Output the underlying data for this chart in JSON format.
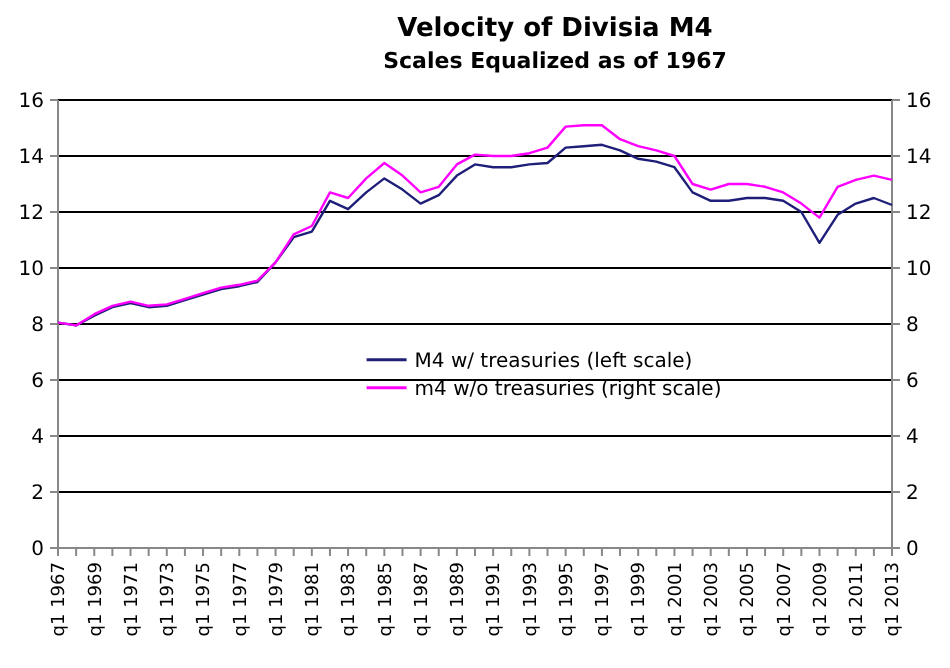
{
  "chart_data": {
    "type": "line",
    "title": "Velocity of Divisia M4",
    "subtitle": "Scales Equalized as of 1967",
    "categories": [
      "q1 1967",
      null,
      "q1 1969",
      null,
      "q1 1971",
      null,
      "q1 1973",
      null,
      "q1 1975",
      null,
      "q1 1977",
      null,
      "q1 1979",
      null,
      "q1 1981",
      null,
      "q1 1983",
      null,
      "q1 1985",
      null,
      "q1 1987",
      null,
      "q1 1989",
      null,
      "q1 1991",
      null,
      "q1 1993",
      null,
      "q1 1995",
      null,
      "q1 1997",
      null,
      "q1 1999",
      null,
      "q1 2001",
      null,
      "q1 2003",
      null,
      "q1 2005",
      null,
      "q1 2007",
      null,
      "q1 2009",
      null,
      "q1 2011",
      null,
      "q1 2013"
    ],
    "ylim": [
      0,
      16
    ],
    "yticks": [
      0,
      2,
      4,
      6,
      8,
      10,
      12,
      14,
      16
    ],
    "y2lim": [
      0,
      16
    ],
    "y2ticks": [
      0,
      2,
      4,
      6,
      8,
      10,
      12,
      14,
      16
    ],
    "grid": "y",
    "legend": "center",
    "marker": "none",
    "line_style": "solid",
    "series": [
      {
        "name": "M4 w/ treasuries (left scale)",
        "color": "#1f1f7a",
        "values": [
          8.05,
          7.95,
          8.3,
          8.6,
          8.75,
          8.6,
          8.65,
          8.85,
          9.05,
          9.25,
          9.35,
          9.5,
          10.2,
          11.1,
          11.3,
          12.4,
          12.1,
          12.7,
          13.2,
          12.8,
          12.3,
          12.6,
          13.3,
          13.7,
          13.6,
          13.6,
          13.7,
          13.75,
          14.3,
          14.35,
          14.4,
          14.2,
          13.9,
          13.8,
          13.6,
          12.7,
          12.4,
          12.4,
          12.5,
          12.5,
          12.4,
          12.0,
          10.9,
          11.9,
          12.3,
          12.5,
          12.25
        ]
      },
      {
        "name": "m4 w/o treasuries (right scale)",
        "color": "#ff00ff",
        "axis": "y2",
        "values": [
          8.05,
          7.95,
          8.35,
          8.65,
          8.8,
          8.65,
          8.7,
          8.9,
          9.1,
          9.3,
          9.4,
          9.55,
          10.2,
          11.2,
          11.5,
          12.7,
          12.5,
          13.2,
          13.75,
          13.3,
          12.7,
          12.9,
          13.7,
          14.05,
          14.0,
          14.0,
          14.1,
          14.3,
          15.05,
          15.1,
          15.1,
          14.6,
          14.35,
          14.2,
          14.0,
          13.0,
          12.8,
          13.0,
          13.0,
          12.9,
          12.7,
          12.3,
          11.8,
          12.9,
          13.15,
          13.3,
          13.15
        ]
      }
    ]
  }
}
